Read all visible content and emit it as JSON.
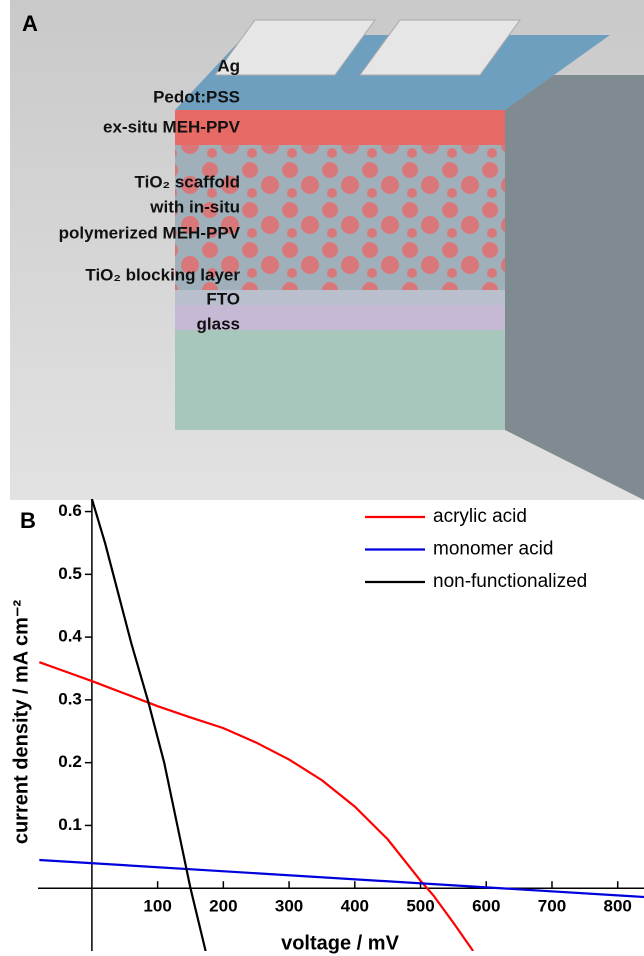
{
  "panel_a": {
    "label": "A",
    "layers": [
      "Ag",
      "Pedot:PSS",
      "ex-situ MEH-PPV",
      "TiO₂ scaffold",
      "with in-situ",
      "polymerized MEH-PPV",
      "TiO₂ blocking layer",
      "FTO",
      "glass"
    ]
  },
  "chart_data": {
    "type": "line",
    "panel_label": "B",
    "x_label": "voltage / mV",
    "y_label": "current density / mA cm⁻²",
    "xlim": [
      -82,
      840
    ],
    "ylim": [
      -0.1,
      0.62
    ],
    "xticks": [
      100,
      200,
      300,
      400,
      500,
      600,
      700,
      800
    ],
    "yticks": [
      0.1,
      0.2,
      0.3,
      0.4,
      0.5,
      0.6
    ],
    "series": [
      {
        "name": "acrylic acid",
        "color": "#ff0000",
        "x": [
          -80,
          -40,
          0,
          50,
          100,
          150,
          200,
          250,
          300,
          350,
          400,
          450,
          500,
          520,
          550,
          580
        ],
        "values": [
          0.36,
          0.345,
          0.33,
          0.31,
          0.29,
          0.272,
          0.255,
          0.232,
          0.205,
          0.172,
          0.13,
          0.078,
          0.012,
          -0.012,
          -0.055,
          -0.1
        ]
      },
      {
        "name": "monomer acid",
        "color": "#0000dd",
        "x": [
          -80,
          840
        ],
        "values": [
          0.045,
          -0.014
        ]
      },
      {
        "name": "non-functionalized",
        "color": "#000000",
        "x": [
          0,
          20,
          40,
          60,
          85,
          110,
          130,
          150,
          173
        ],
        "values": [
          0.62,
          0.55,
          0.47,
          0.39,
          0.3,
          0.2,
          0.1,
          0.0,
          -0.1
        ]
      }
    ]
  }
}
